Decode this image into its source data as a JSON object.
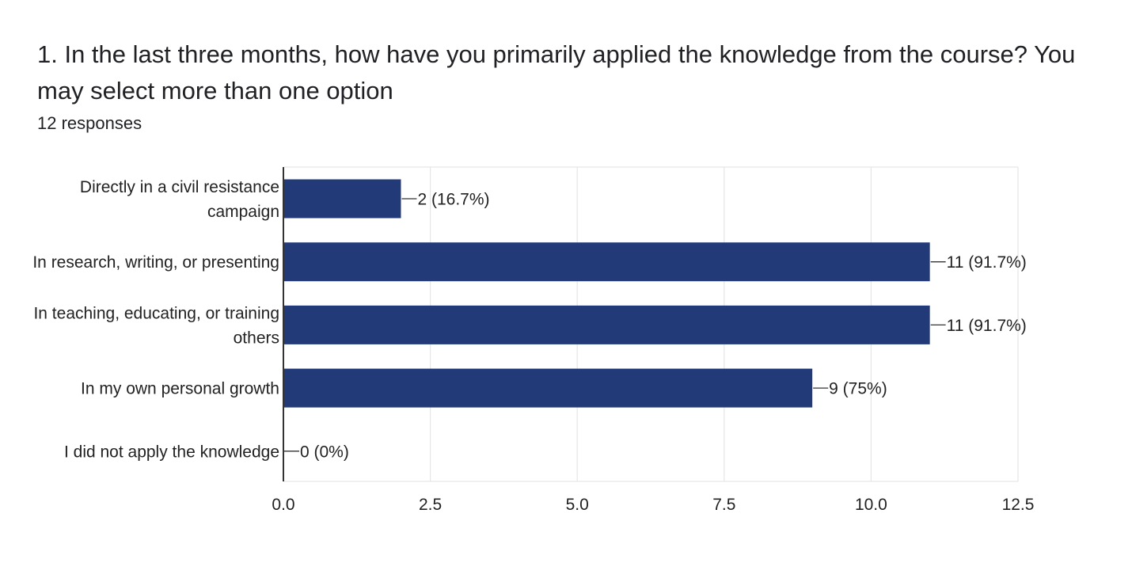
{
  "question": {
    "title": "1. In the last three months, how have you primarily applied the knowledge from the course? You may select more than one option",
    "responses": "12 responses"
  },
  "colors": {
    "bar": "#233a78",
    "grid": "#e6e6e6",
    "axis": "#333333",
    "text": "#222222"
  },
  "chart_data": {
    "type": "bar",
    "orientation": "horizontal",
    "categories": [
      [
        "Directly in a civil resistance",
        "campaign"
      ],
      [
        "In research, writing, or presenting"
      ],
      [
        "In teaching, educating, or training",
        "others"
      ],
      [
        "In my own personal growth"
      ],
      [
        "I did not apply the knowledge"
      ]
    ],
    "values": [
      2,
      11,
      11,
      9,
      0
    ],
    "data_labels": [
      "2 (16.7%)",
      "11 (91.7%)",
      "11 (91.7%)",
      "9 (75%)",
      "0 (0%)"
    ],
    "xlim": [
      0,
      12.5
    ],
    "xticks": [
      "0.0",
      "2.5",
      "5.0",
      "7.5",
      "10.0",
      "12.5"
    ],
    "grid": true,
    "legend": "none"
  }
}
